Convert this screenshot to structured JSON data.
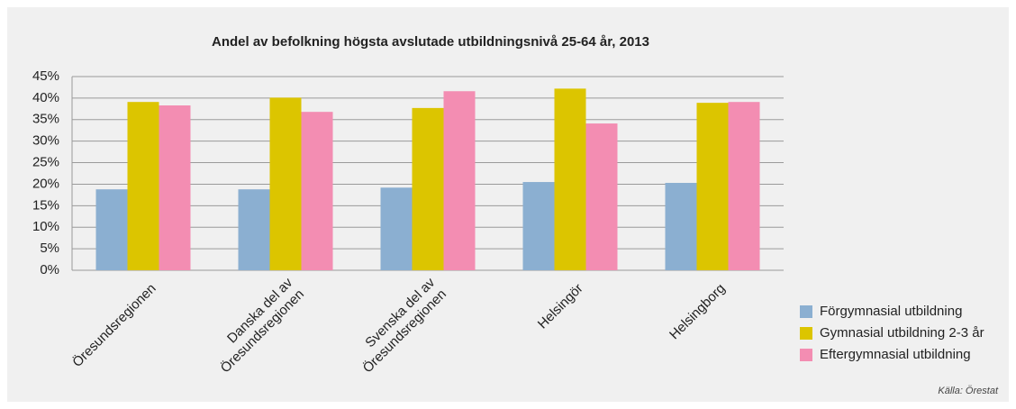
{
  "chart_data": {
    "type": "bar",
    "title": "Andel av befolkning högsta avslutade utbildningsnivå 25-64 år, 2013",
    "categories": [
      "Öresundsregionen",
      "Danska del av\nÖresundsregionen",
      "Svenska del av\nÖresundsregionen",
      "Helsingör",
      "Helsingborg"
    ],
    "series": [
      {
        "name": "Förgymnasial utbildning",
        "color": "#8bafd1",
        "values": [
          18.8,
          18.8,
          19.2,
          20.5,
          20.3
        ]
      },
      {
        "name": "Gymnasial utbildning 2-3 år",
        "color": "#dcc500",
        "values": [
          39.1,
          40.1,
          37.7,
          42.2,
          38.9
        ]
      },
      {
        "name": "Eftergymnasial utbildning",
        "color": "#f38db2",
        "values": [
          38.3,
          36.8,
          41.6,
          34.1,
          39.1
        ]
      }
    ],
    "ylim": [
      0,
      45
    ],
    "yticks": [
      {
        "value": 0,
        "label": "0%"
      },
      {
        "value": 5,
        "label": "5%"
      },
      {
        "value": 10,
        "label": "10%"
      },
      {
        "value": 15,
        "label": "15%"
      },
      {
        "value": 20,
        "label": "20%"
      },
      {
        "value": 25,
        "label": "25%"
      },
      {
        "value": 30,
        "label": "30%"
      },
      {
        "value": 35,
        "label": "35%"
      },
      {
        "value": 40,
        "label": "40%"
      },
      {
        "value": 45,
        "label": "45%"
      }
    ],
    "grid": true,
    "legend": "right",
    "source": "Källa: Örestat"
  }
}
